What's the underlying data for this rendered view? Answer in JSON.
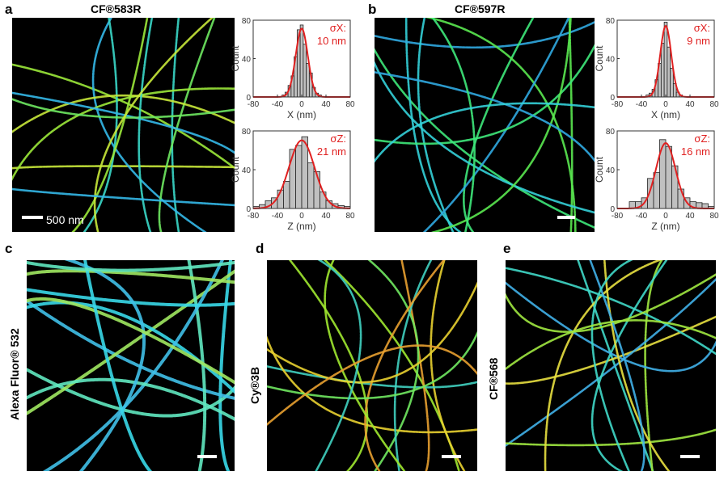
{
  "panels": [
    {
      "id": "a",
      "title": "CF®583R",
      "scale_label": "500 nm"
    },
    {
      "id": "b",
      "title": "CF®597R"
    },
    {
      "id": "c",
      "side_label": "Alexa Fluor® 532"
    },
    {
      "id": "d",
      "side_label": "Cy®3B"
    },
    {
      "id": "e",
      "side_label": "CF®568"
    }
  ],
  "colors": {
    "fit": "#e02020",
    "bars": "#c0c0c0",
    "background": "#000000"
  },
  "chart_data": [
    {
      "type": "bar",
      "panel": "a",
      "xlabel": "X (nm)",
      "ylabel": "Count",
      "xlim": [
        -80,
        80
      ],
      "ylim": [
        0,
        80
      ],
      "xticks": [
        "-80",
        "-40",
        "0",
        "40",
        "80"
      ],
      "yticks": [
        "0",
        "40",
        "80"
      ],
      "annotation": [
        "σX:",
        "10 nm"
      ],
      "sigma": 10,
      "bin_width": 5,
      "bins": [
        -30,
        -25,
        -20,
        -15,
        -10,
        -5,
        0,
        5,
        10,
        15,
        20,
        25,
        30
      ],
      "values": [
        2,
        5,
        12,
        22,
        42,
        70,
        75,
        55,
        35,
        25,
        10,
        4,
        2
      ]
    },
    {
      "type": "bar",
      "panel": "a",
      "xlabel": "Z (nm)",
      "ylabel": "Count",
      "xlim": [
        -80,
        80
      ],
      "ylim": [
        0,
        80
      ],
      "xticks": [
        "-80",
        "-40",
        "0",
        "40",
        "80"
      ],
      "yticks": [
        "0",
        "40",
        "80"
      ],
      "annotation": [
        "σZ:",
        "21 nm"
      ],
      "sigma": 21,
      "bin_width": 10,
      "bins": [
        -75,
        -65,
        -55,
        -45,
        -35,
        -25,
        -15,
        -5,
        5,
        15,
        25,
        35,
        45,
        55,
        65,
        75
      ],
      "values": [
        2,
        4,
        8,
        11,
        19,
        28,
        61,
        65,
        74,
        47,
        38,
        17,
        8,
        5,
        3,
        2
      ]
    },
    {
      "type": "bar",
      "panel": "b",
      "xlabel": "X (nm)",
      "ylabel": "Count",
      "xlim": [
        -80,
        80
      ],
      "ylim": [
        0,
        80
      ],
      "xticks": [
        "-80",
        "-40",
        "0",
        "40",
        "80"
      ],
      "yticks": [
        "0",
        "40",
        "80"
      ],
      "annotation": [
        "σX:",
        "9 nm"
      ],
      "sigma": 9,
      "bin_width": 5,
      "bins": [
        -30,
        -25,
        -20,
        -15,
        -10,
        -5,
        0,
        5,
        10,
        15,
        20,
        25
      ],
      "values": [
        2,
        4,
        8,
        18,
        35,
        56,
        78,
        52,
        30,
        14,
        5,
        2
      ]
    },
    {
      "type": "bar",
      "panel": "b",
      "xlabel": "Z (nm)",
      "ylabel": "Count",
      "xlim": [
        -80,
        80
      ],
      "ylim": [
        0,
        80
      ],
      "xticks": [
        "-80",
        "-40",
        "0",
        "40",
        "80"
      ],
      "yticks": [
        "0",
        "40",
        "80"
      ],
      "annotation": [
        "σZ:",
        "16 nm"
      ],
      "sigma": 16,
      "bin_width": 10,
      "bins": [
        -55,
        -45,
        -35,
        -25,
        -15,
        -5,
        5,
        15,
        25,
        35,
        45,
        55,
        65,
        75
      ],
      "values": [
        7,
        7,
        11,
        31,
        37,
        71,
        64,
        44,
        20,
        11,
        7,
        6,
        5,
        2
      ]
    }
  ]
}
